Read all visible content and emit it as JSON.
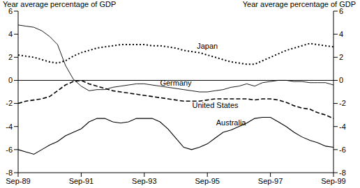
{
  "chart_data": {
    "type": "line",
    "y_label": "Year average percentage of GDP",
    "y2_label": "Year average percentage of GDP",
    "categories": [
      "Sep-89",
      null,
      null,
      null,
      null,
      null,
      null,
      null,
      "Sep-91",
      null,
      null,
      null,
      null,
      null,
      null,
      null,
      "Sep-93",
      null,
      null,
      null,
      null,
      null,
      null,
      null,
      "Sep-95",
      null,
      null,
      null,
      null,
      null,
      null,
      null,
      "Sep-97",
      null,
      null,
      null,
      null,
      null,
      null,
      null,
      "Sep-99"
    ],
    "series": [
      {
        "name": "Japan",
        "color": "#000000",
        "line_style": "dotted",
        "values": [
          2.2,
          2.1,
          2.0,
          1.8,
          1.6,
          1.5,
          1.7,
          2.1,
          2.4,
          2.6,
          2.8,
          2.9,
          3.0,
          3.1,
          3.1,
          3.1,
          3.1,
          3.0,
          3.0,
          2.9,
          2.8,
          2.6,
          2.5,
          2.4,
          2.2,
          2.0,
          1.8,
          1.6,
          1.5,
          1.4,
          1.4,
          1.7,
          2.0,
          2.3,
          2.6,
          2.8,
          3.0,
          3.2,
          3.1,
          3.0,
          2.9
        ]
      },
      {
        "name": "Germany",
        "color": "#000000",
        "line_style": "solid",
        "values": [
          4.8,
          4.7,
          4.6,
          4.3,
          3.8,
          3.1,
          1.3,
          0.1,
          -0.5,
          -0.9,
          -0.8,
          -0.8,
          -0.6,
          -0.5,
          -0.4,
          -0.3,
          -0.3,
          -0.4,
          -0.5,
          -0.6,
          -0.7,
          -0.8,
          -0.9,
          -1.0,
          -1.0,
          -0.9,
          -0.8,
          -0.6,
          -0.5,
          -0.3,
          -0.5,
          -0.2,
          -0.1,
          0.0,
          0.0,
          -0.1,
          -0.1,
          -0.2,
          -0.2,
          -0.2,
          -0.4
        ]
      },
      {
        "name": "United States",
        "color": "#000000",
        "line_style": "dashed",
        "values": [
          -2.0,
          -1.8,
          -1.7,
          -1.6,
          -1.4,
          -0.9,
          -0.4,
          -0.1,
          0.0,
          -0.3,
          -0.5,
          -0.7,
          -0.9,
          -1.0,
          -1.1,
          -1.2,
          -1.3,
          -1.4,
          -1.5,
          -1.6,
          -1.7,
          -1.8,
          -1.8,
          -1.8,
          -1.7,
          -1.6,
          -1.6,
          -1.6,
          -1.6,
          -1.6,
          -1.7,
          -1.6,
          -1.6,
          -1.7,
          -1.9,
          -2.2,
          -2.4,
          -2.5,
          -2.8,
          -3.0,
          -3.3
        ]
      },
      {
        "name": "Australia",
        "color": "#000000",
        "line_style": "solid",
        "values": [
          -6.0,
          -6.2,
          -6.4,
          -6.0,
          -5.6,
          -5.3,
          -4.8,
          -4.5,
          -4.2,
          -3.6,
          -3.3,
          -3.3,
          -3.6,
          -3.7,
          -3.6,
          -3.3,
          -3.3,
          -3.3,
          -3.6,
          -4.2,
          -5.0,
          -5.8,
          -6.0,
          -5.8,
          -5.5,
          -5.0,
          -4.5,
          -4.3,
          -4.0,
          -3.7,
          -3.3,
          -3.2,
          -3.2,
          -3.6,
          -4.0,
          -4.5,
          -4.9,
          -5.2,
          -5.4,
          -5.7,
          -5.8
        ]
      }
    ],
    "ylim": [
      -8,
      6
    ],
    "yticks": [
      -8,
      -6,
      -4,
      -2,
      0,
      2,
      4,
      6
    ],
    "y2lim": [
      -8,
      6
    ],
    "y2ticks": [
      -8,
      -6,
      -4,
      -2,
      0,
      2,
      4,
      6
    ],
    "baseline": 0,
    "grid": false,
    "legend": "none"
  }
}
